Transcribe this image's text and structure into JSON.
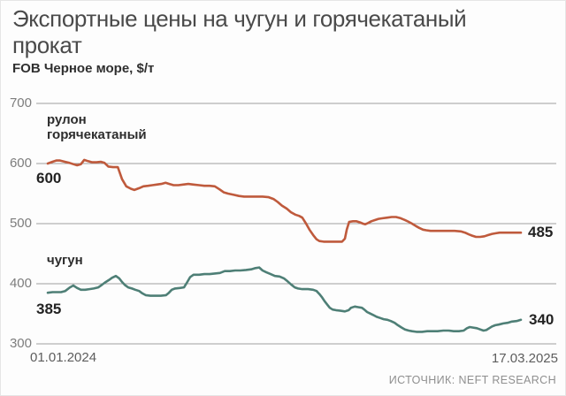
{
  "header": {
    "title": "Экспортные цены на чугун и горячекатаный\nпрокат",
    "subtitle": "FOB Черное море, $/т"
  },
  "footer": {
    "source": "ИСТОЧНИК: NEFT RESEARCH"
  },
  "chart_data": {
    "type": "line",
    "title": "Экспортные цены на чугун и горячекатаный прокат",
    "subtitle": "FOB Черное море, $/т",
    "unit": "$/т",
    "grid": "horizontal",
    "x_axis": {
      "start_label": "01.01.2024",
      "end_label": "17.03.2025"
    },
    "y_axis": {
      "ticks": [
        700,
        600,
        500,
        400,
        300
      ],
      "range": [
        300,
        700
      ]
    },
    "series": [
      {
        "name": "рулон горячекатаный",
        "label": "рулон\nгорячекатаный",
        "color": "#bf5a3c",
        "start_label": "600",
        "end_label": "485",
        "start_value": 600,
        "end_value": 485,
        "points": [
          [
            0,
            600
          ],
          [
            0.01,
            603
          ],
          [
            0.018,
            605
          ],
          [
            0.026,
            605
          ],
          [
            0.036,
            603
          ],
          [
            0.046,
            601
          ],
          [
            0.054,
            599
          ],
          [
            0.062,
            597
          ],
          [
            0.07,
            599
          ],
          [
            0.077,
            606
          ],
          [
            0.085,
            604
          ],
          [
            0.094,
            602
          ],
          [
            0.103,
            602
          ],
          [
            0.112,
            603
          ],
          [
            0.12,
            601
          ],
          [
            0.128,
            595
          ],
          [
            0.138,
            594
          ],
          [
            0.148,
            594
          ],
          [
            0.157,
            574
          ],
          [
            0.166,
            562
          ],
          [
            0.176,
            558
          ],
          [
            0.183,
            556
          ],
          [
            0.193,
            559
          ],
          [
            0.202,
            562
          ],
          [
            0.212,
            563
          ],
          [
            0.221,
            564
          ],
          [
            0.23,
            565
          ],
          [
            0.24,
            566
          ],
          [
            0.249,
            568
          ],
          [
            0.257,
            566
          ],
          [
            0.266,
            564
          ],
          [
            0.276,
            564
          ],
          [
            0.286,
            565
          ],
          [
            0.297,
            566
          ],
          [
            0.308,
            565
          ],
          [
            0.32,
            564
          ],
          [
            0.331,
            563
          ],
          [
            0.342,
            563
          ],
          [
            0.353,
            562
          ],
          [
            0.363,
            557
          ],
          [
            0.372,
            552
          ],
          [
            0.381,
            550
          ],
          [
            0.393,
            548
          ],
          [
            0.404,
            546
          ],
          [
            0.415,
            545
          ],
          [
            0.428,
            545
          ],
          [
            0.441,
            545
          ],
          [
            0.454,
            545
          ],
          [
            0.467,
            544
          ],
          [
            0.477,
            541
          ],
          [
            0.486,
            536
          ],
          [
            0.495,
            530
          ],
          [
            0.505,
            525
          ],
          [
            0.514,
            519
          ],
          [
            0.523,
            515
          ],
          [
            0.531,
            513
          ],
          [
            0.538,
            510
          ],
          [
            0.546,
            500
          ],
          [
            0.553,
            490
          ],
          [
            0.561,
            481
          ],
          [
            0.568,
            474
          ],
          [
            0.574,
            471
          ],
          [
            0.583,
            470
          ],
          [
            0.596,
            470
          ],
          [
            0.609,
            470
          ],
          [
            0.622,
            470
          ],
          [
            0.628,
            475
          ],
          [
            0.632,
            490
          ],
          [
            0.637,
            503
          ],
          [
            0.645,
            504
          ],
          [
            0.652,
            504
          ],
          [
            0.66,
            502
          ],
          [
            0.666,
            500
          ],
          [
            0.671,
            499
          ],
          [
            0.677,
            501
          ],
          [
            0.684,
            504
          ],
          [
            0.692,
            506
          ],
          [
            0.699,
            508
          ],
          [
            0.708,
            509
          ],
          [
            0.718,
            510
          ],
          [
            0.727,
            511
          ],
          [
            0.736,
            511
          ],
          [
            0.746,
            509
          ],
          [
            0.755,
            506
          ],
          [
            0.763,
            503
          ],
          [
            0.77,
            500
          ],
          [
            0.778,
            496
          ],
          [
            0.785,
            493
          ],
          [
            0.793,
            490
          ],
          [
            0.8,
            489
          ],
          [
            0.809,
            488
          ],
          [
            0.821,
            488
          ],
          [
            0.834,
            488
          ],
          [
            0.847,
            488
          ],
          [
            0.86,
            488
          ],
          [
            0.873,
            487
          ],
          [
            0.882,
            485
          ],
          [
            0.89,
            482
          ],
          [
            0.897,
            480
          ],
          [
            0.905,
            478
          ],
          [
            0.914,
            478
          ],
          [
            0.923,
            479
          ],
          [
            0.931,
            481
          ],
          [
            0.939,
            483
          ],
          [
            0.947,
            484
          ],
          [
            0.955,
            485
          ],
          [
            0.97,
            485
          ],
          [
            0.985,
            485
          ],
          [
            1,
            485
          ]
        ]
      },
      {
        "name": "чугун",
        "label": "чугун",
        "color": "#4e7f76",
        "start_label": "385",
        "end_label": "340",
        "start_value": 385,
        "end_value": 340,
        "points": [
          [
            0,
            385
          ],
          [
            0.01,
            386
          ],
          [
            0.019,
            386
          ],
          [
            0.028,
            386
          ],
          [
            0.037,
            388
          ],
          [
            0.047,
            394
          ],
          [
            0.054,
            397
          ],
          [
            0.062,
            393
          ],
          [
            0.07,
            390
          ],
          [
            0.079,
            390
          ],
          [
            0.088,
            391
          ],
          [
            0.097,
            392
          ],
          [
            0.107,
            394
          ],
          [
            0.114,
            398
          ],
          [
            0.121,
            402
          ],
          [
            0.129,
            406
          ],
          [
            0.136,
            410
          ],
          [
            0.144,
            413
          ],
          [
            0.151,
            409
          ],
          [
            0.157,
            403
          ],
          [
            0.163,
            398
          ],
          [
            0.17,
            394
          ],
          [
            0.178,
            392
          ],
          [
            0.185,
            390
          ],
          [
            0.193,
            388
          ],
          [
            0.2,
            384
          ],
          [
            0.207,
            381
          ],
          [
            0.217,
            380
          ],
          [
            0.228,
            380
          ],
          [
            0.239,
            380
          ],
          [
            0.25,
            381
          ],
          [
            0.256,
            385
          ],
          [
            0.262,
            390
          ],
          [
            0.269,
            392
          ],
          [
            0.279,
            393
          ],
          [
            0.288,
            394
          ],
          [
            0.295,
            403
          ],
          [
            0.301,
            411
          ],
          [
            0.308,
            415
          ],
          [
            0.32,
            415
          ],
          [
            0.331,
            416
          ],
          [
            0.342,
            416
          ],
          [
            0.353,
            417
          ],
          [
            0.364,
            418
          ],
          [
            0.374,
            421
          ],
          [
            0.385,
            421
          ],
          [
            0.396,
            422
          ],
          [
            0.407,
            422
          ],
          [
            0.419,
            423
          ],
          [
            0.43,
            424
          ],
          [
            0.439,
            426
          ],
          [
            0.447,
            427
          ],
          [
            0.454,
            422
          ],
          [
            0.462,
            419
          ],
          [
            0.471,
            416
          ],
          [
            0.48,
            413
          ],
          [
            0.49,
            412
          ],
          [
            0.499,
            409
          ],
          [
            0.507,
            404
          ],
          [
            0.514,
            399
          ],
          [
            0.522,
            394
          ],
          [
            0.529,
            392
          ],
          [
            0.538,
            391
          ],
          [
            0.55,
            391
          ],
          [
            0.561,
            390
          ],
          [
            0.568,
            388
          ],
          [
            0.574,
            383
          ],
          [
            0.58,
            377
          ],
          [
            0.585,
            371
          ],
          [
            0.591,
            365
          ],
          [
            0.596,
            360
          ],
          [
            0.602,
            357
          ],
          [
            0.609,
            356
          ],
          [
            0.619,
            355
          ],
          [
            0.628,
            354
          ],
          [
            0.636,
            356
          ],
          [
            0.641,
            360
          ],
          [
            0.649,
            362
          ],
          [
            0.656,
            361
          ],
          [
            0.664,
            360
          ],
          [
            0.669,
            357
          ],
          [
            0.675,
            353
          ],
          [
            0.68,
            351
          ],
          [
            0.688,
            348
          ],
          [
            0.695,
            345
          ],
          [
            0.703,
            343
          ],
          [
            0.71,
            341
          ],
          [
            0.718,
            340
          ],
          [
            0.725,
            338
          ],
          [
            0.733,
            335
          ],
          [
            0.74,
            331
          ],
          [
            0.748,
            327
          ],
          [
            0.755,
            324
          ],
          [
            0.763,
            322
          ],
          [
            0.77,
            321
          ],
          [
            0.779,
            320
          ],
          [
            0.791,
            320
          ],
          [
            0.802,
            321
          ],
          [
            0.813,
            321
          ],
          [
            0.824,
            321
          ],
          [
            0.836,
            322
          ],
          [
            0.847,
            322
          ],
          [
            0.858,
            321
          ],
          [
            0.869,
            321
          ],
          [
            0.879,
            322
          ],
          [
            0.886,
            326
          ],
          [
            0.892,
            328
          ],
          [
            0.899,
            327
          ],
          [
            0.907,
            326
          ],
          [
            0.914,
            324
          ],
          [
            0.921,
            322
          ],
          [
            0.927,
            323
          ],
          [
            0.933,
            326
          ],
          [
            0.939,
            329
          ],
          [
            0.946,
            331
          ],
          [
            0.953,
            332
          ],
          [
            0.963,
            334
          ],
          [
            0.972,
            335
          ],
          [
            0.981,
            337
          ],
          [
            0.991,
            338
          ],
          [
            1,
            340
          ]
        ]
      }
    ]
  }
}
